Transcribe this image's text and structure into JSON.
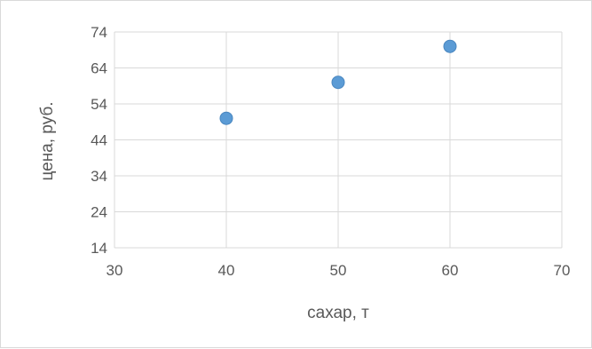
{
  "chart_data": {
    "type": "scatter",
    "title": "",
    "xlabel": "сахар, т",
    "ylabel": "цена, руб.",
    "xlim": [
      30,
      70
    ],
    "ylim": [
      14,
      74
    ],
    "xticks": [
      "30",
      "40",
      "50",
      "60",
      "70"
    ],
    "yticks": [
      "14",
      "24",
      "34",
      "44",
      "54",
      "64",
      "74"
    ],
    "grid": true,
    "legend": "none",
    "series": [
      {
        "color": "#5b9bd5",
        "points": [
          {
            "x": 40,
            "y": 50
          },
          {
            "x": 50,
            "y": 60
          },
          {
            "x": 60,
            "y": 70
          }
        ]
      }
    ]
  }
}
